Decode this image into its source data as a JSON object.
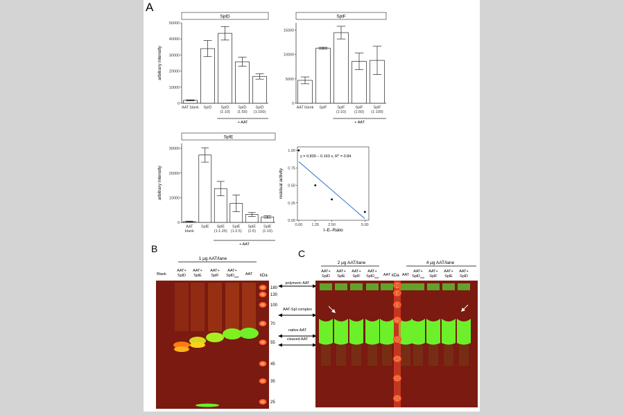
{
  "panels": {
    "A": "A",
    "B": "B",
    "C": "C"
  },
  "chart_data": [
    {
      "type": "bar",
      "title": "SplD",
      "ylabel": "arbitrary intensity",
      "ylim": [
        0,
        50000
      ],
      "yticks": [
        0,
        10000,
        20000,
        30000,
        40000,
        50000
      ],
      "yticklabels": [
        "0",
        "10000",
        "20000",
        "30000",
        "40000",
        "50000"
      ],
      "categories": [
        [
          "AAT blank"
        ],
        [
          "SplD"
        ],
        [
          "SplD",
          "(1:10)"
        ],
        [
          "SplD",
          "(1:50)"
        ],
        [
          "SplD",
          "(1:100)"
        ]
      ],
      "values": [
        1800,
        34000,
        43500,
        25800,
        16700
      ],
      "errors": [
        300,
        5000,
        4200,
        2800,
        1700
      ],
      "group_label": "+ AAT",
      "group_bars": [
        2,
        4
      ]
    },
    {
      "type": "bar",
      "title": "SplF",
      "ylim": [
        0,
        16500
      ],
      "yticks": [
        0,
        5000,
        10000,
        15000
      ],
      "yticklabels": [
        "0",
        "5000",
        "10000",
        "15000"
      ],
      "categories": [
        [
          "AAT blank"
        ],
        [
          "SplF"
        ],
        [
          "SplF",
          "(1:10)"
        ],
        [
          "SplF",
          "(1:50)"
        ],
        [
          "SplF",
          "(1:100)"
        ]
      ],
      "values": [
        4700,
        11300,
        14500,
        8600,
        8800
      ],
      "errors": [
        700,
        200,
        1300,
        1700,
        2900
      ],
      "group_label": "+ AAT",
      "group_bars": [
        2,
        4
      ]
    },
    {
      "type": "bar",
      "title": "SplE",
      "ylabel": "arbitrary intensity",
      "ylim": [
        0,
        32000
      ],
      "yticks": [
        0,
        10000,
        20000,
        30000
      ],
      "yticklabels": [
        "0",
        "10000",
        "20000",
        "30000"
      ],
      "categories": [
        [
          "AAT",
          "blank"
        ],
        [
          "SplE"
        ],
        [
          "SplE",
          "(1:1.25)"
        ],
        [
          "SplE",
          "(1:2.5)"
        ],
        [
          "SplE",
          "(1:5)"
        ],
        [
          "SplE",
          "(1:10)"
        ]
      ],
      "values": [
        300,
        27300,
        13700,
        7700,
        3200,
        2200
      ],
      "errors": [
        200,
        2900,
        2900,
        3400,
        800,
        500
      ],
      "group_label": "+ AAT",
      "group_bars": [
        2,
        5
      ]
    },
    {
      "type": "scatter",
      "xlabel": "I–E–Ratio",
      "ylabel": "residual activity",
      "xlim": [
        -0.1,
        5.3
      ],
      "ylim": [
        0,
        1.05
      ],
      "xticks": [
        0,
        1.25,
        2.5,
        5
      ],
      "xticklabels": [
        "0.00",
        "1.25",
        "2.50",
        "5.00"
      ],
      "yticks": [
        0,
        0.25,
        0.5,
        0.75,
        1
      ],
      "yticklabels": [
        "0.00",
        "0.25",
        "0.50",
        "0.75",
        "1.00"
      ],
      "x": [
        0,
        1.25,
        2.5,
        5
      ],
      "y": [
        1.0,
        0.5,
        0.3,
        0.12
      ],
      "fit": {
        "intercept": 0.839,
        "slope": -0.163
      },
      "annotation": "y = 0.839 − 0.163 x, R",
      "annotation_sup": "2",
      "annotation_end": " = 0.84"
    }
  ],
  "blotB": {
    "header": "1 μg AAT/lane",
    "lanes": [
      [
        "Blank"
      ],
      [
        "AAT+",
        "SplD"
      ],
      [
        "AAT+",
        "SplE"
      ],
      [
        "AAT+",
        "SplF"
      ],
      [
        "AAT+",
        "SplD"
      ],
      [
        "AAT"
      ]
    ],
    "lane5_sub": "mut",
    "kda_label": "kDa",
    "markers": [
      "180",
      "130",
      "100",
      "70",
      "55",
      "45",
      "35",
      "25"
    ]
  },
  "middle_labels": [
    "polymeric AAT",
    "AAT-Spl complex",
    "native AAT",
    "cleaved AAT"
  ],
  "blotC": {
    "header_left": "2 μg AAT/lane",
    "header_right": "4 μg AAT/lane",
    "lanes_left": [
      [
        "AAT+",
        "SplD"
      ],
      [
        "AAT+",
        "SplE"
      ],
      [
        "AAT+",
        "SplF"
      ],
      [
        "AAT+",
        "SplD"
      ],
      [
        "AAT"
      ]
    ],
    "lane_left_sub": "mut",
    "kda_label": "kDa",
    "lanes_right": [
      [
        "AAT"
      ],
      [
        "AAT+",
        "SplD"
      ],
      [
        "AAT+",
        "SplF"
      ],
      [
        "AAT+",
        "SplE"
      ],
      [
        "AAT+",
        "SplD"
      ]
    ],
    "lane_right_sub": "mut",
    "markers": [
      "180",
      "130",
      "100",
      "70",
      "55",
      "45",
      "35",
      "25"
    ]
  },
  "colors": {
    "blot_bg": "#7a1a10",
    "band": "#6cf02a",
    "ladder": "#ff4a30",
    "fit_line": "#3d7cc9"
  }
}
